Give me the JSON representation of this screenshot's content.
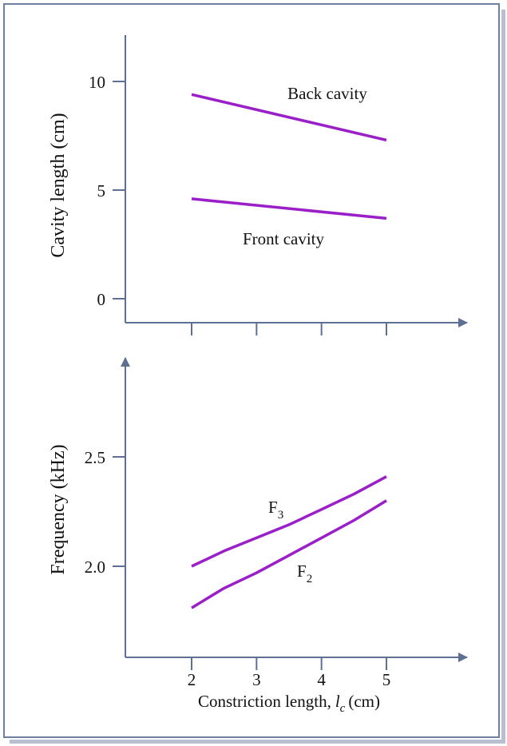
{
  "colors": {
    "axis": "#5e6f94",
    "series": "#9b1fc9",
    "frame": "#6f7f9f"
  },
  "chart_data": [
    {
      "type": "line",
      "title": "",
      "xlabel": "",
      "ylabel": "Cavity length (cm)",
      "xlim": [
        1,
        6
      ],
      "ylim": [
        0,
        12
      ],
      "x_ticks": [
        2,
        3,
        4,
        5
      ],
      "y_ticks": [
        {
          "value": 0,
          "label": "0"
        },
        {
          "value": 5,
          "label": "5"
        },
        {
          "value": 10,
          "label": "10"
        }
      ],
      "grid": false,
      "series": [
        {
          "name": "Back cavity",
          "x": [
            2,
            5
          ],
          "y": [
            9.4,
            7.3
          ]
        },
        {
          "name": "Front cavity",
          "x": [
            2,
            5
          ],
          "y": [
            4.6,
            3.7
          ]
        }
      ]
    },
    {
      "type": "line",
      "title": "",
      "xlabel": "Constriction length,",
      "xlabel_symbol": "l",
      "xlabel_subscript": "c",
      "xlabel_unit": "(cm)",
      "ylabel": "Frequency (kHz)",
      "xlim": [
        1,
        6
      ],
      "ylim": [
        1.6,
        2.9
      ],
      "x_ticks": [
        {
          "value": 2,
          "label": "2"
        },
        {
          "value": 3,
          "label": "3"
        },
        {
          "value": 4,
          "label": "4"
        },
        {
          "value": 5,
          "label": "5"
        }
      ],
      "y_ticks": [
        {
          "value": 2.0,
          "label": "2.0"
        },
        {
          "value": 2.5,
          "label": "2.5"
        }
      ],
      "grid": false,
      "series": [
        {
          "name": "F",
          "subscript": "3",
          "x": [
            2,
            2.5,
            3,
            3.5,
            4,
            4.5,
            5
          ],
          "y": [
            2.0,
            2.07,
            2.13,
            2.19,
            2.26,
            2.33,
            2.41
          ]
        },
        {
          "name": "F",
          "subscript": "2",
          "x": [
            2,
            2.5,
            3,
            3.5,
            4,
            4.5,
            5
          ],
          "y": [
            1.81,
            1.9,
            1.97,
            2.05,
            2.13,
            2.21,
            2.3
          ]
        }
      ]
    }
  ]
}
